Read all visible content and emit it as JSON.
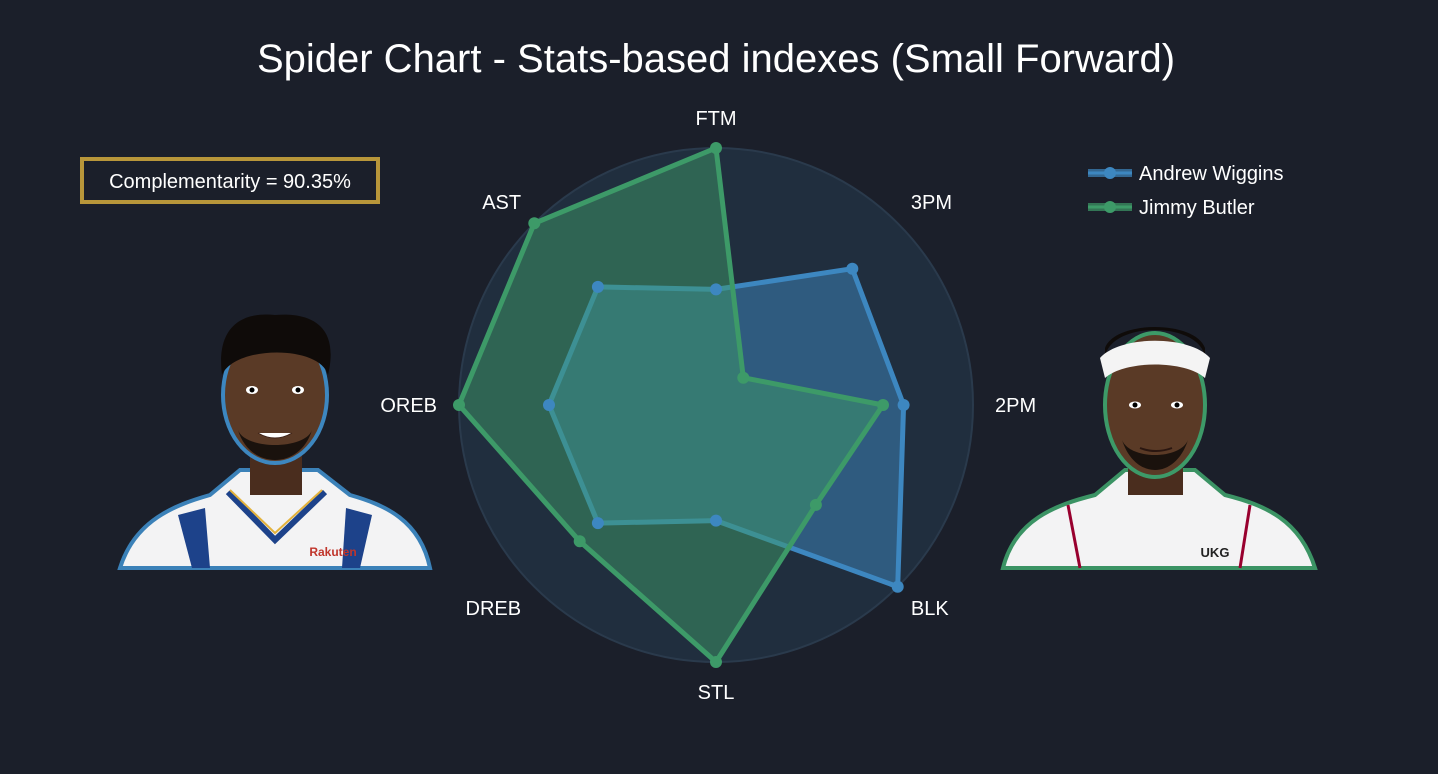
{
  "chart_data": {
    "type": "radar",
    "title": "Spider Chart - Stats-based indexes (Small Forward)",
    "axes": [
      "FTM",
      "3PM",
      "2PM",
      "BLK",
      "STL",
      "DREB",
      "OREB",
      "AST"
    ],
    "range": [
      0,
      1
    ],
    "grid": false,
    "legend_position": "top-right",
    "series": [
      {
        "name": "Andrew Wiggins",
        "color": "#3d87c0",
        "values": [
          0.45,
          0.75,
          0.73,
          1.0,
          0.45,
          0.65,
          0.65,
          0.65
        ]
      },
      {
        "name": "Jimmy Butler",
        "color": "#3d9a68",
        "values": [
          1.0,
          0.15,
          0.65,
          0.55,
          1.0,
          0.75,
          1.0,
          1.0
        ]
      }
    ],
    "annotation": "Complementarity = 90.35%"
  },
  "players": {
    "left": {
      "name": "Andrew Wiggins",
      "portrait_icon": "player-portrait-icon",
      "glow": "#3d87c0",
      "jersey": "#ffffff",
      "trim": "#1d428a",
      "brand": "Rakuten"
    },
    "right": {
      "name": "Jimmy Butler",
      "portrait_icon": "player-portrait-icon",
      "glow": "#3d9a68",
      "jersey": "#ffffff",
      "trim": "#98002e",
      "brand": "UKG"
    }
  },
  "colors": {
    "background": "#1b1f2a",
    "polar_bg": "#202e3e",
    "annotation_border": "#b8963a"
  }
}
